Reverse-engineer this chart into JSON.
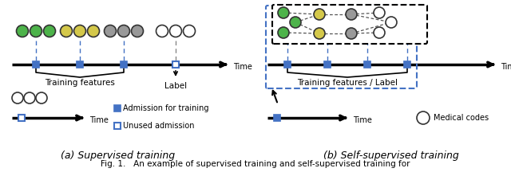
{
  "fig_width": 6.4,
  "fig_height": 2.16,
  "dpi": 100,
  "bg_color": "#ffffff",
  "caption": "Fig. 1.   An example of supervised training and self-supervised training for",
  "colors": {
    "green": "#4db34a",
    "yellow": "#d4c84a",
    "gray": "#999999",
    "white_circle": "#ffffff",
    "blue_square": "#4472c4",
    "blue_dashed": "#4472c4",
    "black": "#000000"
  },
  "legend": {
    "filled_square_label": "Admission for training",
    "empty_square_label": "Unused admission",
    "circle_label": "Medical codes"
  }
}
